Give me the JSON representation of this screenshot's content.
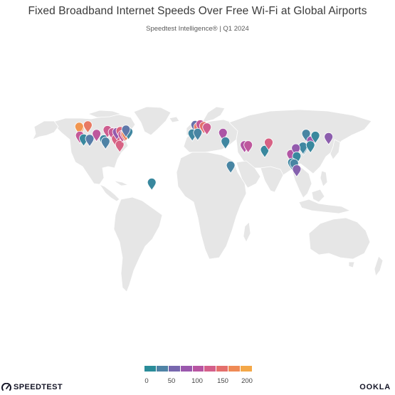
{
  "title": "Fixed Broadband Internet Speeds Over Free Wi-Fi at Global Airports",
  "subtitle": "Speedtest Intelligence® | Q1 2024",
  "legend": {
    "ticks": [
      "0",
      "50",
      "100",
      "150",
      "200"
    ],
    "colors": [
      "#2a8c99",
      "#4f83a6",
      "#7767ae",
      "#9a58ad",
      "#b855a2",
      "#d45f8a",
      "#e46f6c",
      "#ef8a55",
      "#f4a848"
    ]
  },
  "map_data": {
    "type": "pin-map",
    "land_color": "#e6e6e6",
    "border_color": "#ffffff",
    "markers": [
      {
        "lon": -122.4,
        "lat": 47.4,
        "value": 180
      },
      {
        "lon": -123.1,
        "lat": 49.2,
        "value": 185
      },
      {
        "lon": -122.4,
        "lat": 37.6,
        "value": 110
      },
      {
        "lon": -118.4,
        "lat": 33.9,
        "value": 10
      },
      {
        "lon": -114.0,
        "lat": 51.1,
        "value": 160
      },
      {
        "lon": -112.0,
        "lat": 33.4,
        "value": 30
      },
      {
        "lon": -104.7,
        "lat": 39.9,
        "value": 105
      },
      {
        "lon": -97.0,
        "lat": 32.9,
        "value": 15
      },
      {
        "lon": -95.3,
        "lat": 29.9,
        "value": 25
      },
      {
        "lon": -93.2,
        "lat": 44.9,
        "value": 120
      },
      {
        "lon": -87.9,
        "lat": 41.9,
        "value": 115
      },
      {
        "lon": -84.4,
        "lat": 33.6,
        "value": 130
      },
      {
        "lon": -83.4,
        "lat": 42.2,
        "value": 70
      },
      {
        "lon": -80.3,
        "lat": 25.8,
        "value": 130
      },
      {
        "lon": -79.6,
        "lat": 43.7,
        "value": 135
      },
      {
        "lon": -77.5,
        "lat": 38.9,
        "value": 110
      },
      {
        "lon": -75.2,
        "lat": 39.9,
        "value": 140
      },
      {
        "lon": -73.8,
        "lat": 40.6,
        "value": 170
      },
      {
        "lon": -71.0,
        "lat": 42.4,
        "value": 15
      },
      {
        "lon": -73.7,
        "lat": 45.5,
        "value": 35
      },
      {
        "lon": -46.5,
        "lat": -23.4,
        "value": 10
      },
      {
        "lon": -0.5,
        "lat": 51.5,
        "value": 40
      },
      {
        "lon": 2.5,
        "lat": 49.0,
        "value": 160
      },
      {
        "lon": 4.8,
        "lat": 52.3,
        "value": 110
      },
      {
        "lon": 8.6,
        "lat": 50.0,
        "value": 150
      },
      {
        "lon": 11.8,
        "lat": 48.4,
        "value": 120
      },
      {
        "lon": -3.6,
        "lat": 40.5,
        "value": 15
      },
      {
        "lon": 2.1,
        "lat": 41.3,
        "value": 20
      },
      {
        "lon": 28.8,
        "lat": 41.3,
        "value": 90
      },
      {
        "lon": 31.4,
        "lat": 30.1,
        "value": 15
      },
      {
        "lon": 36.9,
        "lat": -1.3,
        "value": 20
      },
      {
        "lon": 51.6,
        "lat": 25.3,
        "value": 95
      },
      {
        "lon": 55.4,
        "lat": 25.3,
        "value": 105
      },
      {
        "lon": 72.9,
        "lat": 19.1,
        "value": 10
      },
      {
        "lon": 77.1,
        "lat": 28.6,
        "value": 130
      },
      {
        "lon": 116.6,
        "lat": 40.1,
        "value": 20
      },
      {
        "lon": 100.7,
        "lat": 13.7,
        "value": 95
      },
      {
        "lon": 121.8,
        "lat": 31.1,
        "value": 80
      },
      {
        "lon": 113.9,
        "lat": 22.3,
        "value": 20
      },
      {
        "lon": 113.3,
        "lat": 23.4,
        "value": 15
      },
      {
        "lon": 121.2,
        "lat": 25.1,
        "value": 10
      },
      {
        "lon": 126.4,
        "lat": 37.5,
        "value": 10
      },
      {
        "lon": 140.4,
        "lat": 35.8,
        "value": 65
      },
      {
        "lon": 105.8,
        "lat": 21.2,
        "value": 70
      },
      {
        "lon": 106.7,
        "lat": 10.8,
        "value": 10
      },
      {
        "lon": 101.7,
        "lat": 2.7,
        "value": 15
      },
      {
        "lon": 104.0,
        "lat": 1.4,
        "value": 20
      },
      {
        "lon": 106.7,
        "lat": -6.1,
        "value": 60
      }
    ]
  },
  "branding": {
    "left": "SPEEDTEST",
    "right": "OOKLA"
  }
}
